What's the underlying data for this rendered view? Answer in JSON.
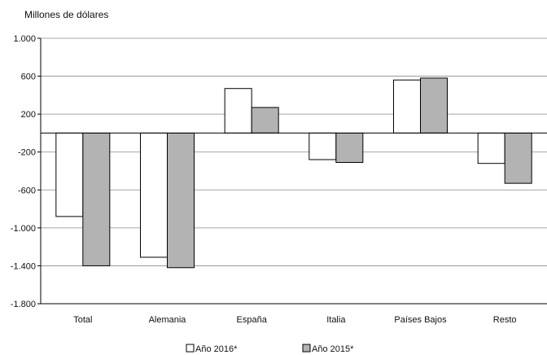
{
  "chart_data": {
    "type": "bar",
    "ylabel": "Millones de dólares",
    "ylim": [
      -1800,
      1000
    ],
    "yticks": [
      {
        "value": 1000,
        "label": "1.000"
      },
      {
        "value": 600,
        "label": "600"
      },
      {
        "value": 200,
        "label": "200"
      },
      {
        "value": -200,
        "label": "-200"
      },
      {
        "value": -600,
        "label": "-600"
      },
      {
        "value": -1000,
        "label": "-1.000"
      },
      {
        "value": -1400,
        "label": "-1.400"
      },
      {
        "value": -1800,
        "label": "-1.800"
      }
    ],
    "categories": [
      "Total",
      "Alemania",
      "España",
      "Italia",
      "Países Bajos",
      "Resto"
    ],
    "series": [
      {
        "name": "Año 2016*",
        "color": "#ffffff",
        "values": [
          -880,
          -1310,
          470,
          -280,
          560,
          -320
        ]
      },
      {
        "name": "Año 2015*",
        "color": "#b3b3b3",
        "values": [
          -1400,
          -1420,
          270,
          -310,
          580,
          -530
        ]
      }
    ],
    "grid": true,
    "legend_position": "bottom"
  }
}
